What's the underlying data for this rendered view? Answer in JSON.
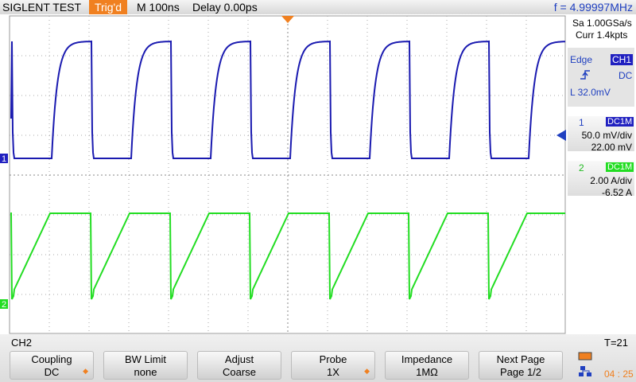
{
  "header": {
    "brand": "SIGLENT TEST",
    "trigger_status": "Trig'd",
    "timebase": "M 100ns",
    "delay": "Delay 0.00ps",
    "frequency": "f = 4.99997MHz"
  },
  "side_panel": {
    "sample_rate": "Sa 1.00GSa/s",
    "memory": "Curr 1.4kpts",
    "trigger": {
      "type": "Edge",
      "source": "CH1",
      "coupling": "DC",
      "level": "L  32.0mV"
    },
    "channels": [
      {
        "number": "1",
        "coupling": "DC1M",
        "scale": "50.0 mV/div",
        "offset": "22.00 mV"
      },
      {
        "number": "2",
        "coupling": "DC1M",
        "scale": "2.00 A/div",
        "offset": "-6.52 A"
      }
    ]
  },
  "status": {
    "menu": "CH2",
    "trigger_count": "T=21",
    "time": "04 : 25"
  },
  "menu_buttons": [
    {
      "label": "Coupling",
      "value": "DC"
    },
    {
      "label": "BW Limit",
      "value": "none"
    },
    {
      "label": "Adjust",
      "value": "Coarse"
    },
    {
      "label": "Probe",
      "value": "1X"
    },
    {
      "label": "Impedance",
      "value": "1MΩ"
    },
    {
      "label": "Next Page",
      "value": "Page 1/2"
    }
  ]
}
